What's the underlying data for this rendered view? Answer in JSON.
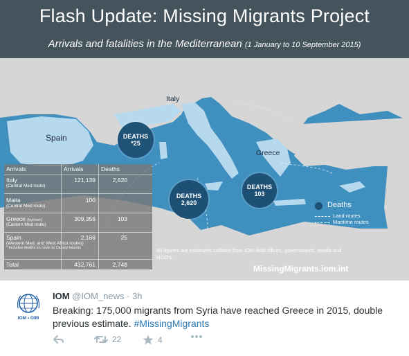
{
  "infographic": {
    "title": "Flash Update: Missing Migrants Project",
    "subtitle": "Arrivals and fatalities in the Mediterranean",
    "subtitle_dates": "(1 January to 10 September 2015)",
    "places": {
      "italy": "Italy",
      "spain": "Spain",
      "greece": "Greece"
    },
    "bubbles": {
      "spain": {
        "label": "DEATHS",
        "value": "*25"
      },
      "italy": {
        "label": "DEATHS",
        "value": "2,620"
      },
      "greece": {
        "label": "DEATHS",
        "value": "103"
      }
    },
    "table": {
      "headers": [
        "Arrivals",
        "Arrivals",
        "Deaths"
      ],
      "rows": [
        {
          "name": "Italy",
          "route": "(Central Med route)",
          "arrivals": "121,139",
          "deaths": "2,620"
        },
        {
          "name": "Malta",
          "route": "(Central Med route)",
          "arrivals": "100",
          "deaths": ""
        },
        {
          "name": "Greece",
          "name_extra": "(by/over)",
          "route": "(Eastern Med route)",
          "arrivals": "309,356",
          "deaths": "103"
        },
        {
          "name": "Spain",
          "route": "(Western Med. and West Africa routes)",
          "note": "* Includes deaths en route to Canary Islands",
          "arrivals": "2,166",
          "deaths": "25"
        }
      ],
      "total": {
        "name": "Total",
        "arrivals": "432,761",
        "deaths": "2,748"
      }
    },
    "legend": {
      "title": "Deaths",
      "land": "Land routes",
      "maritime": "Maritime routes"
    },
    "footnote": "All figures are estimates collated from IOM field offices, governments, media and NGO's.",
    "url": "MissingMigrants.iom.int",
    "colors": {
      "sea": "#3f8fbf",
      "land": "#d6d6d6",
      "highlight": "#b7d9ee",
      "bubble": "#1e4f74"
    }
  },
  "tweet": {
    "author_name": "IOM",
    "author_handle": "@IOM_news",
    "time": "· 3h",
    "text": "Breaking: 175,000 migrants from Syria have reached Greece in 2015, double previous estimate.",
    "hashtag": "#MissingMigrants",
    "avatar_label": "IOM • OIM",
    "retweets": "22",
    "favorites": "4"
  }
}
